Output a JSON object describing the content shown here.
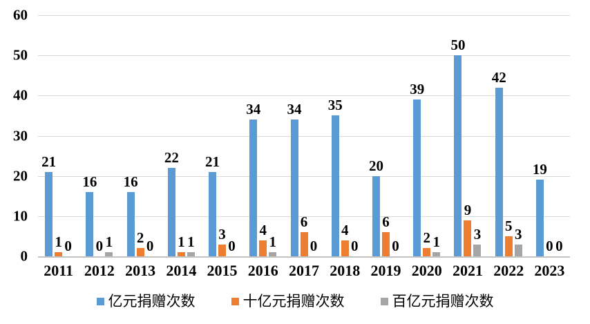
{
  "chart_data": {
    "type": "bar",
    "title": "",
    "xlabel": "",
    "ylabel": "",
    "ylim": [
      0,
      60
    ],
    "y_ticks": [
      0,
      10,
      20,
      30,
      40,
      50,
      60
    ],
    "grid": true,
    "data_labels": true,
    "legend_position": "bottom",
    "categories": [
      "2011",
      "2012",
      "2013",
      "2014",
      "2015",
      "2016",
      "2017",
      "2018",
      "2019",
      "2020",
      "2021",
      "2022",
      "2023"
    ],
    "series": [
      {
        "name": "亿元捐赠次数",
        "color": "#5B9BD5",
        "values": [
          21,
          16,
          16,
          22,
          21,
          34,
          34,
          35,
          20,
          39,
          50,
          42,
          19
        ]
      },
      {
        "name": "十亿元捐赠次数",
        "color": "#ED7D31",
        "values": [
          1,
          0,
          2,
          1,
          3,
          4,
          6,
          4,
          6,
          2,
          9,
          5,
          0
        ]
      },
      {
        "name": "百亿元捐赠次数",
        "color": "#A5A5A5",
        "values": [
          0,
          1,
          0,
          1,
          0,
          1,
          0,
          0,
          0,
          1,
          3,
          3,
          0
        ]
      }
    ],
    "colors": {
      "gridline": "#d9d9d9",
      "axis_line": "#c3c3c3",
      "label_text": "#000000",
      "background": "#ffffff"
    }
  }
}
